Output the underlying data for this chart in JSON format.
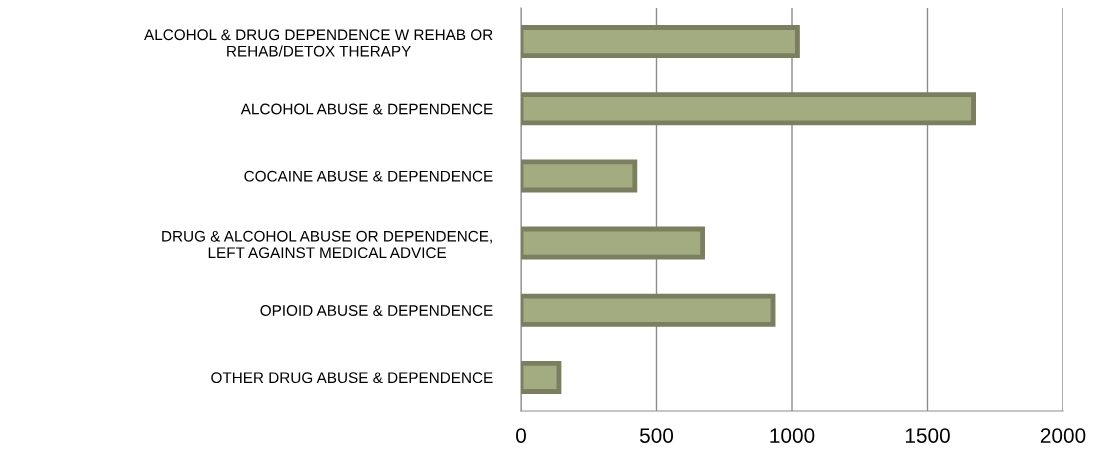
{
  "chart_data": {
    "type": "bar",
    "orientation": "horizontal",
    "categories": [
      "ALCOHOL & DRUG DEPENDENCE W REHAB OR\nREHAB/DETOX THERAPY",
      "ALCOHOL ABUSE & DEPENDENCE",
      "COCAINE ABUSE & DEPENDENCE",
      "DRUG & ALCOHOL ABUSE OR DEPENDENCE,\nLEFT AGAINST MEDICAL ADVICE",
      "OPIOID ABUSE & DEPENDENCE",
      "OTHER DRUG ABUSE & DEPENDENCE"
    ],
    "values": [
      1020,
      1670,
      420,
      670,
      930,
      140
    ],
    "color": "#a3ab80",
    "xlim": [
      0,
      2000
    ],
    "xticks": [
      0,
      500,
      1000,
      1500,
      2000
    ],
    "grid": "x"
  }
}
